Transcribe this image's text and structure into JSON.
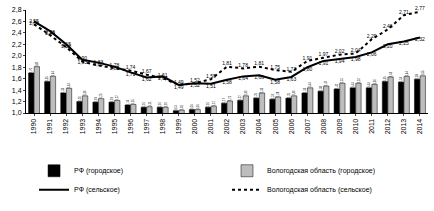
{
  "chart_data": {
    "type": "bar",
    "categories": [
      "1990",
      "1991",
      "1992",
      "1993",
      "1994",
      "1995",
      "1996",
      "1997",
      "1998",
      "1999",
      "2000",
      "2001",
      "2002",
      "2003",
      "2004",
      "2005",
      "2006",
      "2007",
      "2008",
      "2009",
      "2010",
      "2011",
      "2012",
      "2013",
      "2014"
    ],
    "series": [
      {
        "name": "РФ (городское)",
        "type": "bar",
        "color": "#000000",
        "values": [
          1.7,
          1.55,
          1.35,
          1.2,
          1.19,
          1.19,
          1.14,
          1.1,
          1.1,
          1.04,
          1.06,
          1.1,
          1.17,
          1.22,
          1.26,
          1.24,
          1.26,
          1.35,
          1.38,
          1.42,
          1.44,
          1.44,
          1.55,
          1.54,
          1.59
        ],
        "value_labels": [
          "1,70",
          "1,55",
          "1,35",
          "1,20",
          "1,19",
          "1,19",
          "1,14",
          "1,10",
          "1,10",
          "1,04",
          "1,06",
          "1,10",
          "1,17",
          "1,22",
          "1,26",
          "1,24",
          "1,26",
          "1,35",
          "1,38",
          "1,42",
          "1,44",
          "1,44",
          "1,55",
          "1,54",
          "1,59"
        ]
      },
      {
        "name": "Вологодская область (городское)",
        "type": "bar",
        "color": "#bdbdbd",
        "values": [
          1.81,
          1.64,
          1.43,
          1.3,
          1.25,
          1.22,
          1.15,
          1.11,
          1.1,
          1.05,
          1.06,
          1.12,
          1.21,
          1.3,
          1.35,
          1.28,
          1.3,
          1.44,
          1.47,
          1.52,
          1.52,
          1.5,
          1.63,
          1.64,
          1.65
        ],
        "value_labels": [
          "1,81",
          "1,64",
          "1,43",
          "1,30",
          "1,25",
          "1,22",
          "1,15",
          "1,11",
          "1,10",
          "1,05",
          "1,06",
          "1,12",
          "1,21",
          "1,30",
          "1,35",
          "1,28",
          "1,30",
          "1,44",
          "1,47",
          "1,52",
          "1,52",
          "1,50",
          "1,63",
          "1,64",
          "1,65"
        ]
      },
      {
        "name": "РФ (сельское)",
        "type": "line",
        "color": "#000000",
        "line_style": "solid",
        "values": [
          2.6,
          2.43,
          2.2,
          1.93,
          1.88,
          1.81,
          1.71,
          1.62,
          1.64,
          1.49,
          1.52,
          1.51,
          1.58,
          1.64,
          1.66,
          1.58,
          1.63,
          1.8,
          1.91,
          1.94,
          1.98,
          2.06,
          2.2,
          2.25,
          2.32
        ],
        "value_labels": [
          "2,60",
          "2,43",
          "2,20",
          "1,93",
          "1,88",
          "1,81",
          "1,71",
          "1,62",
          "1,64",
          "1,49",
          "1,52",
          "1,51",
          "1,58",
          "1,64",
          "1,66",
          "1,58",
          "1,63",
          "1,80",
          "1,91",
          "1,94",
          "1,98",
          "2,06",
          "2,20",
          "2,25",
          "2,32"
        ]
      },
      {
        "name": "Вологодская область (сельское)",
        "type": "line",
        "color": "#000000",
        "line_style": "dot",
        "values": [
          2.55,
          2.36,
          2.15,
          1.9,
          1.83,
          1.78,
          1.74,
          1.67,
          1.61,
          1.49,
          1.52,
          1.59,
          1.81,
          1.78,
          1.81,
          1.75,
          1.72,
          1.91,
          1.97,
          2.02,
          2.04,
          2.29,
          2.46,
          2.71,
          2.77
        ],
        "value_labels": [
          "2,55",
          "2,36",
          "2,15",
          "1,90",
          "1,83",
          "1,78",
          "1,74",
          "1,67",
          "1,61",
          "1,49",
          "1,52",
          "1,59",
          "1,81",
          "1,78",
          "1,81",
          "1,75",
          "1,72",
          "1,91",
          "1,97",
          "2,02",
          "2,04",
          "2,29",
          "2,46",
          "2,71",
          "2,77"
        ]
      }
    ],
    "ylim": [
      1.0,
      2.8
    ],
    "yticks": [
      {
        "value": 1.0,
        "label": "1,0"
      },
      {
        "value": 1.2,
        "label": "1,2"
      },
      {
        "value": 1.4,
        "label": "1,4"
      },
      {
        "value": 1.6,
        "label": "1,6"
      },
      {
        "value": 1.8,
        "label": "1,8"
      },
      {
        "value": 2.0,
        "label": "2,0"
      },
      {
        "value": 2.2,
        "label": "2,2"
      },
      {
        "value": 2.4,
        "label": "2,4"
      },
      {
        "value": 2.6,
        "label": "2,6"
      },
      {
        "value": 2.8,
        "label": "2,8"
      }
    ],
    "grid": false,
    "legend": "bottom",
    "data_labels": true
  }
}
